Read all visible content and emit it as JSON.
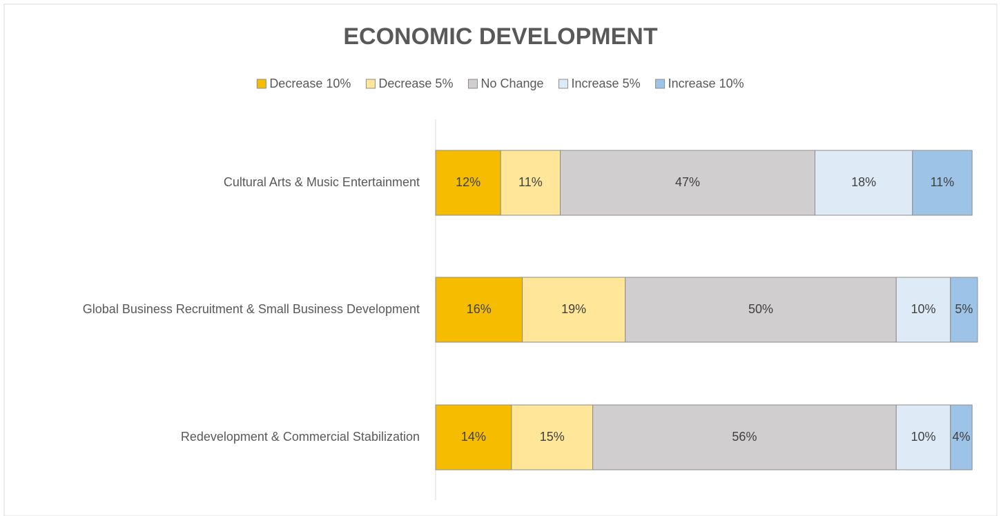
{
  "chart_data": {
    "type": "bar",
    "orientation": "horizontal",
    "stacked": true,
    "title": "ECONOMIC DEVELOPMENT",
    "categories": [
      "Cultural Arts & Music Entertainment",
      "Global Business Recruitment & Small Business Development",
      "Redevelopment & Commercial Stabilization"
    ],
    "series": [
      {
        "name": "Decrease 10%",
        "color": "#f5bc00",
        "values": [
          12,
          16,
          14
        ],
        "value_labels": [
          "12%",
          "16%",
          "14%"
        ]
      },
      {
        "name": "Decrease 5%",
        "color": "#ffe699",
        "values": [
          11,
          19,
          15
        ],
        "value_labels": [
          "11%",
          "19%",
          "15%"
        ]
      },
      {
        "name": "No Change",
        "color": "#d0cece",
        "values": [
          47,
          50,
          56
        ],
        "value_labels": [
          "47%",
          "50%",
          "56%"
        ]
      },
      {
        "name": "Increase 5%",
        "color": "#deebf7",
        "values": [
          18,
          10,
          10
        ],
        "value_labels": [
          "18%",
          "10%",
          "10%"
        ]
      },
      {
        "name": "Increase 10%",
        "color": "#9dc3e6",
        "values": [
          11,
          5,
          4
        ],
        "value_labels": [
          "11%",
          "5%",
          "4%"
        ]
      }
    ],
    "xlim": [
      0,
      100
    ],
    "legend": "top"
  }
}
